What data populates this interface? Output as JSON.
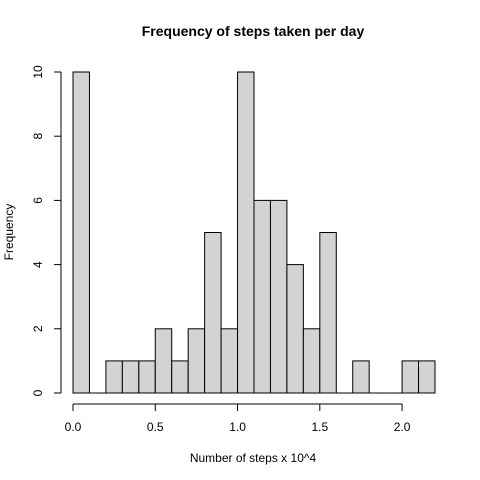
{
  "chart_data": {
    "type": "bar",
    "title": "Frequency of steps taken per day",
    "xlabel": "Number of steps x 10^4",
    "ylabel": "Frequency",
    "bin_width": 0.1,
    "bin_starts": [
      0.0,
      0.1,
      0.2,
      0.3,
      0.4,
      0.5,
      0.6,
      0.7,
      0.8,
      0.9,
      1.0,
      1.1,
      1.2,
      1.3,
      1.4,
      1.5,
      1.6,
      1.7,
      1.8,
      1.9,
      2.0,
      2.1
    ],
    "values": [
      10,
      0,
      1,
      1,
      1,
      2,
      1,
      2,
      5,
      2,
      10,
      6,
      6,
      4,
      2,
      5,
      0,
      1,
      0,
      0,
      1,
      1
    ],
    "xlim": [
      0,
      2.2
    ],
    "ylim": [
      0,
      10
    ],
    "x_ticks": [
      0.0,
      0.5,
      1.0,
      1.5,
      2.0
    ],
    "x_tick_labels": [
      "0.0",
      "0.5",
      "1.0",
      "1.5",
      "2.0"
    ],
    "y_ticks": [
      0,
      2,
      4,
      6,
      8,
      10
    ],
    "y_tick_labels": [
      "0",
      "2",
      "4",
      "6",
      "8",
      "10"
    ],
    "bar_fill": "#d3d3d3",
    "bar_stroke": "#000000",
    "grid": false
  }
}
